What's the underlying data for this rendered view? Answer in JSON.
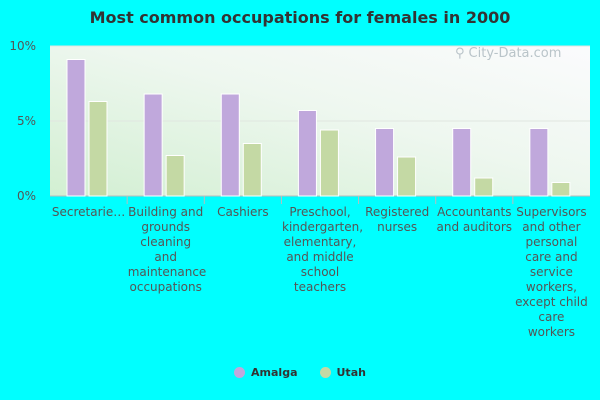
{
  "chart_data": {
    "type": "bar",
    "title": "Most common occupations for females in 2000",
    "categories": [
      "Secretarie…",
      "Building and grounds cleaning and maintenance occupations",
      "Cashiers",
      "Preschool, kindergarten, elementary, and middle school teachers",
      "Registered nurses",
      "Accountants and auditors",
      "Supervisors and other personal care and service workers, except child care workers"
    ],
    "series": [
      {
        "name": "Amalga",
        "color": "#c0a8dc",
        "values": [
          9.1,
          6.8,
          6.8,
          5.7,
          4.5,
          4.5,
          4.5
        ]
      },
      {
        "name": "Utah",
        "color": "#c4d9a4",
        "values": [
          6.3,
          2.7,
          3.5,
          4.4,
          2.6,
          1.2,
          0.9
        ]
      }
    ],
    "yticks": [
      {
        "value": 0,
        "label": "0%"
      },
      {
        "value": 5,
        "label": "5%"
      },
      {
        "value": 10,
        "label": "10%"
      }
    ],
    "ylim": [
      0,
      10
    ],
    "grid": true,
    "legend_placement": "bottom-center"
  },
  "watermark": "City-Data.com"
}
